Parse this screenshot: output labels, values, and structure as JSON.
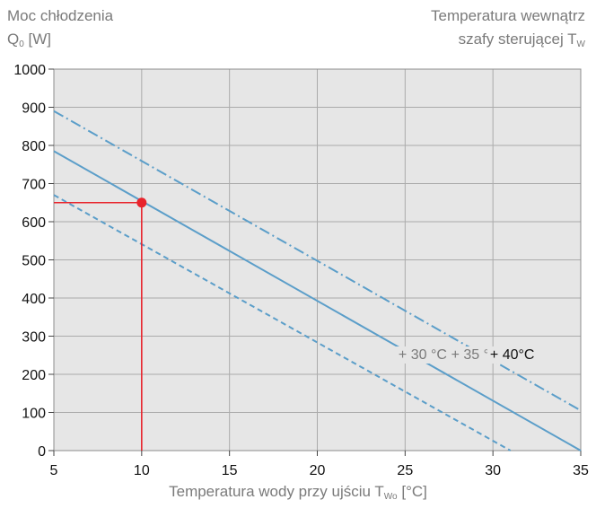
{
  "chart_data": {
    "type": "line",
    "ylabel_line1": "Moc chłodzenia",
    "ylabel_symbol": "Q",
    "ylabel_sub": "0",
    "ylabel_unit": "[W]",
    "legend_title_line1": "Temperatura wewnątrz",
    "legend_title_line2": "szafy sterującej T",
    "legend_title_sub": "W",
    "xlabel_text": "Temperatura wody przy ujściu T",
    "xlabel_sub": "Wo",
    "xlabel_unit": "[°C]",
    "xlim": [
      5,
      35
    ],
    "ylim": [
      0,
      1000
    ],
    "xticks": [
      5,
      10,
      15,
      20,
      25,
      30,
      35
    ],
    "yticks": [
      0,
      100,
      200,
      300,
      400,
      500,
      600,
      700,
      800,
      900,
      1000
    ],
    "grid": true,
    "series": [
      {
        "name": "+ 30 °C",
        "style": "dashed",
        "color": "#5b9ec9",
        "label_color": "#7a7a7a",
        "label_at": [
          26,
          240
        ],
        "x": [
          5,
          31
        ],
        "y": [
          670,
          0
        ]
      },
      {
        "name": "+ 35 °C",
        "style": "solid",
        "color": "#5b9ec9",
        "label_color": "#7a7a7a",
        "label_at": [
          29,
          240
        ],
        "x": [
          5,
          35
        ],
        "y": [
          785,
          0
        ]
      },
      {
        "name": "+ 40°C",
        "style": "dashdot",
        "color": "#5b9ec9",
        "label_color": "#111111",
        "label_at": [
          31.1,
          240
        ],
        "x": [
          5,
          35
        ],
        "y": [
          890,
          105
        ]
      }
    ],
    "marker": {
      "x": 10,
      "y": 650,
      "color": "#e8242c"
    }
  }
}
